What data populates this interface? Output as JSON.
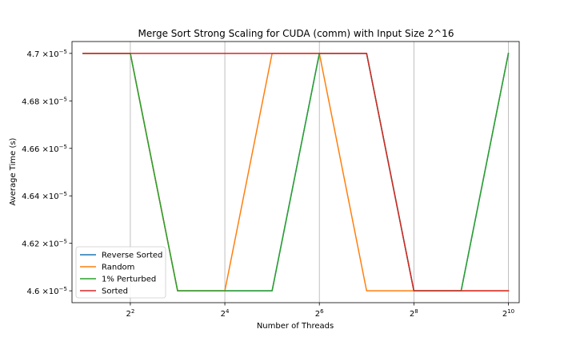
{
  "chart_data": {
    "type": "line",
    "title": "Merge Sort Strong Scaling for CUDA (comm) with Input Size 2^16",
    "xlabel": "Number of Threads",
    "ylabel": "Average Time (s)",
    "x": [
      2,
      4,
      8,
      16,
      32,
      64,
      128,
      256,
      512,
      1024
    ],
    "x_scale": "log2",
    "xlim": [
      1.7,
      1200
    ],
    "ylim": [
      4.595e-05,
      4.705e-05
    ],
    "grid": "x-major",
    "legend_position": "lower-left",
    "xticks": [
      {
        "value": 4,
        "base": "2",
        "exp": "2"
      },
      {
        "value": 16,
        "base": "2",
        "exp": "4"
      },
      {
        "value": 64,
        "base": "2",
        "exp": "6"
      },
      {
        "value": 256,
        "base": "2",
        "exp": "8"
      },
      {
        "value": 1024,
        "base": "2",
        "exp": "10"
      }
    ],
    "yticks": [
      {
        "value": 4.6e-05,
        "mant": "4.6",
        "times": "×10",
        "exp": "−5"
      },
      {
        "value": 4.62e-05,
        "mant": "4.62",
        "times": "×10",
        "exp": "−5"
      },
      {
        "value": 4.64e-05,
        "mant": "4.64",
        "times": "×10",
        "exp": "−5"
      },
      {
        "value": 4.66e-05,
        "mant": "4.66",
        "times": "×10",
        "exp": "−5"
      },
      {
        "value": 4.68e-05,
        "mant": "4.68",
        "times": "×10",
        "exp": "−5"
      },
      {
        "value": 4.7e-05,
        "mant": "4.7",
        "times": "×10",
        "exp": "−5"
      }
    ],
    "series": [
      {
        "name": "Reverse Sorted",
        "color": "#1f77b4",
        "values": [
          4.7e-05,
          4.7e-05,
          4.6e-05,
          4.6e-05,
          4.6e-05,
          4.7e-05,
          4.7e-05,
          4.6e-05,
          4.6e-05,
          4.7e-05
        ]
      },
      {
        "name": "Random",
        "color": "#ff7f0e",
        "values": [
          4.7e-05,
          4.7e-05,
          4.6e-05,
          4.6e-05,
          4.7e-05,
          4.7e-05,
          4.6e-05,
          4.6e-05,
          4.6e-05,
          4.6e-05
        ]
      },
      {
        "name": "1% Perturbed",
        "color": "#2ca02c",
        "values": [
          4.7e-05,
          4.7e-05,
          4.6e-05,
          4.6e-05,
          4.6e-05,
          4.7e-05,
          4.7e-05,
          4.6e-05,
          4.6e-05,
          4.7e-05
        ]
      },
      {
        "name": "Sorted",
        "color": "#d62728",
        "values": [
          4.7e-05,
          4.7e-05,
          4.7e-05,
          4.7e-05,
          4.7e-05,
          4.7e-05,
          4.7e-05,
          4.6e-05,
          4.6e-05,
          4.6e-05
        ]
      }
    ]
  }
}
